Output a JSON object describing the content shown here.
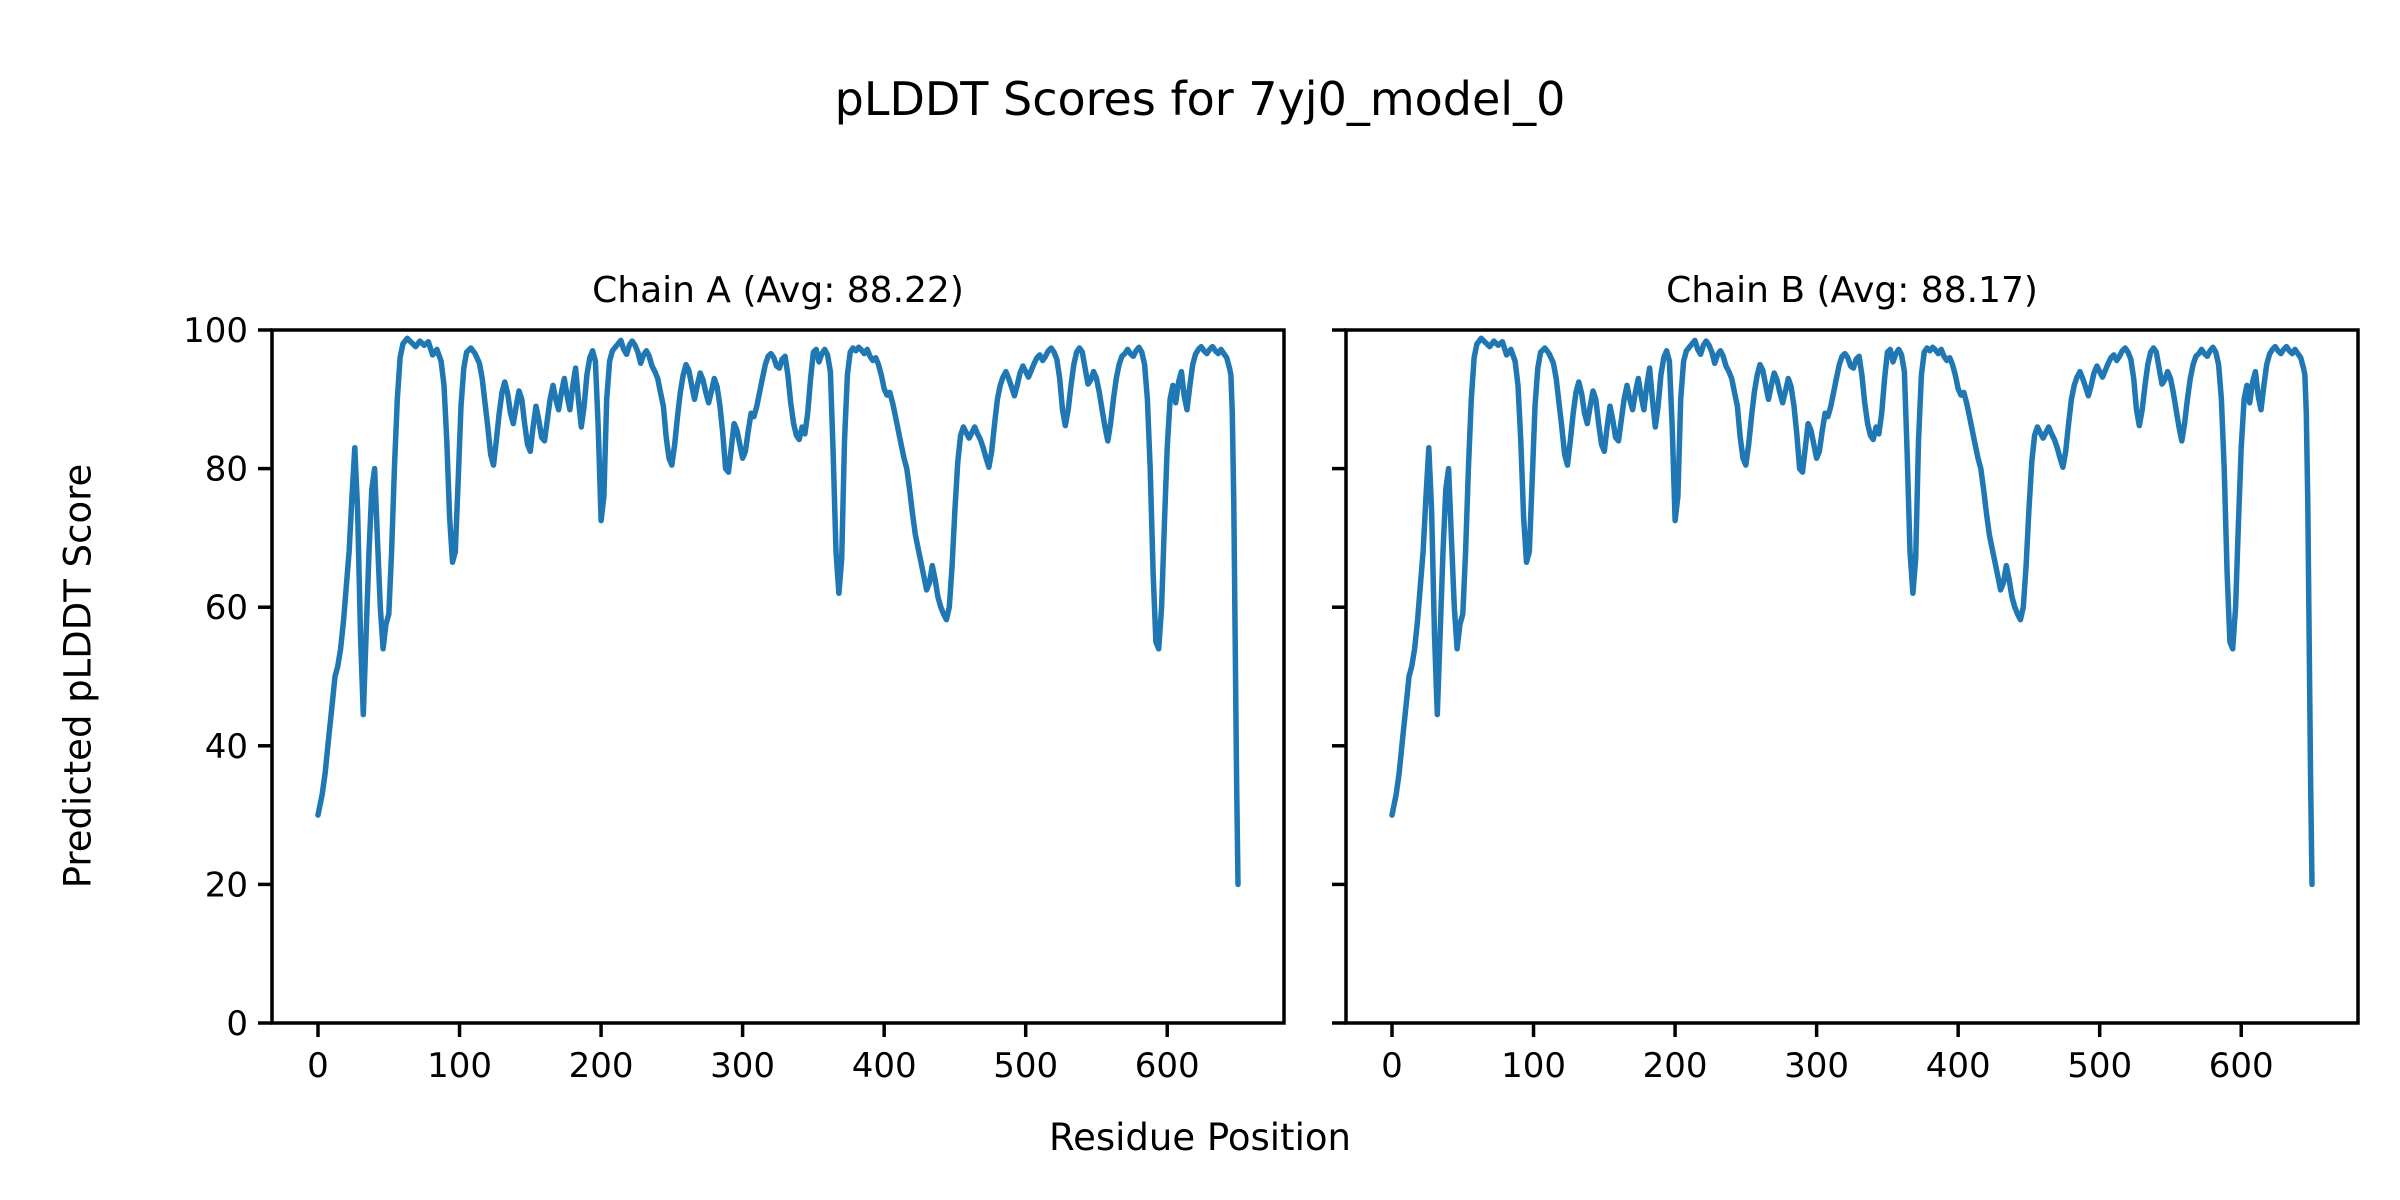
{
  "figure": {
    "suptitle": "pLDDT Scores for 7yj0_model_0",
    "xlabel": "Residue Position",
    "ylabel": "Predicted pLDDT Score",
    "background_color": "#ffffff",
    "text_color": "#000000"
  },
  "chart_data": {
    "type": "line",
    "title": "pLDDT Scores for 7yj0_model_0",
    "xlabel": "Residue Position",
    "ylabel": "Predicted pLDDT Score",
    "line_color": "#1f77b4",
    "grid": false,
    "legend": "none",
    "xlim": [
      -32.5,
      682.5
    ],
    "ylim": [
      0,
      100
    ],
    "xticks": [
      0,
      100,
      200,
      300,
      400,
      500,
      600
    ],
    "yticks": [
      0,
      20,
      40,
      60,
      80,
      100
    ],
    "subplots": [
      {
        "title": "Chain A (Avg: 88.22)",
        "name": "Chain A",
        "avg": 88.22
      },
      {
        "title": "Chain B (Avg: 88.17)",
        "name": "Chain B",
        "avg": 88.17
      }
    ],
    "note": "Both chains show the same pLDDT profile curve",
    "points": [
      [
        0,
        30
      ],
      [
        3,
        33
      ],
      [
        5,
        36
      ],
      [
        8,
        42
      ],
      [
        10,
        46
      ],
      [
        12,
        50
      ],
      [
        14,
        51.5
      ],
      [
        16,
        54
      ],
      [
        18,
        58
      ],
      [
        20,
        63
      ],
      [
        22,
        68
      ],
      [
        24,
        76
      ],
      [
        26,
        83
      ],
      [
        28,
        74
      ],
      [
        30,
        56
      ],
      [
        32,
        44.5
      ],
      [
        34,
        56
      ],
      [
        36,
        68
      ],
      [
        38,
        77
      ],
      [
        40,
        80
      ],
      [
        42,
        70
      ],
      [
        44,
        60
      ],
      [
        46,
        54
      ],
      [
        48,
        57.5
      ],
      [
        50,
        59
      ],
      [
        52,
        68
      ],
      [
        54,
        80
      ],
      [
        56,
        90
      ],
      [
        58,
        96
      ],
      [
        60,
        98
      ],
      [
        63,
        98.8
      ],
      [
        66,
        98.2
      ],
      [
        69,
        97.6
      ],
      [
        72,
        98.4
      ],
      [
        75,
        97.8
      ],
      [
        78,
        98.3
      ],
      [
        81,
        96.4
      ],
      [
        84,
        97.2
      ],
      [
        87,
        95.5
      ],
      [
        89,
        92
      ],
      [
        91,
        84
      ],
      [
        93,
        73
      ],
      [
        95,
        66.5
      ],
      [
        97,
        68
      ],
      [
        99,
        78
      ],
      [
        101,
        89
      ],
      [
        103,
        94.5
      ],
      [
        105,
        96.8
      ],
      [
        108,
        97.4
      ],
      [
        111,
        96.6
      ],
      [
        114,
        95.2
      ],
      [
        116,
        93
      ],
      [
        118,
        89.5
      ],
      [
        120,
        86
      ],
      [
        122,
        82
      ],
      [
        124,
        80.5
      ],
      [
        126,
        84
      ],
      [
        128,
        88
      ],
      [
        130,
        91
      ],
      [
        132,
        92.5
      ],
      [
        134,
        90.8
      ],
      [
        136,
        88
      ],
      [
        138,
        86.5
      ],
      [
        140,
        89
      ],
      [
        142,
        91.2
      ],
      [
        144,
        90
      ],
      [
        146,
        86.5
      ],
      [
        148,
        83.5
      ],
      [
        150,
        82.5
      ],
      [
        152,
        86
      ],
      [
        154,
        89
      ],
      [
        156,
        87
      ],
      [
        158,
        84.5
      ],
      [
        160,
        84
      ],
      [
        162,
        87
      ],
      [
        164,
        90
      ],
      [
        166,
        92
      ],
      [
        168,
        90
      ],
      [
        170,
        88.5
      ],
      [
        172,
        91
      ],
      [
        174,
        93
      ],
      [
        176,
        90.5
      ],
      [
        178,
        88.5
      ],
      [
        180,
        92
      ],
      [
        182,
        94.5
      ],
      [
        184,
        90
      ],
      [
        186,
        86
      ],
      [
        188,
        89
      ],
      [
        190,
        93.5
      ],
      [
        192,
        96
      ],
      [
        194,
        97
      ],
      [
        196,
        95.5
      ],
      [
        198,
        86
      ],
      [
        200,
        72.5
      ],
      [
        202,
        76
      ],
      [
        204,
        90
      ],
      [
        206,
        95.5
      ],
      [
        208,
        97
      ],
      [
        210,
        97.5
      ],
      [
        212,
        98
      ],
      [
        214,
        98.5
      ],
      [
        216,
        97.2
      ],
      [
        218,
        96.5
      ],
      [
        220,
        97.8
      ],
      [
        222,
        98.4
      ],
      [
        224,
        97.8
      ],
      [
        226,
        96.8
      ],
      [
        228,
        95.2
      ],
      [
        230,
        96.4
      ],
      [
        232,
        97
      ],
      [
        234,
        96.2
      ],
      [
        236,
        94.8
      ],
      [
        238,
        94
      ],
      [
        240,
        93
      ],
      [
        242,
        91
      ],
      [
        244,
        89
      ],
      [
        246,
        84.5
      ],
      [
        248,
        81.5
      ],
      [
        250,
        80.5
      ],
      [
        252,
        83.5
      ],
      [
        254,
        87.5
      ],
      [
        256,
        91
      ],
      [
        258,
        93.5
      ],
      [
        260,
        95
      ],
      [
        262,
        94.2
      ],
      [
        264,
        92
      ],
      [
        266,
        90
      ],
      [
        268,
        92
      ],
      [
        270,
        93.8
      ],
      [
        272,
        92.8
      ],
      [
        274,
        91
      ],
      [
        276,
        89.5
      ],
      [
        278,
        91.2
      ],
      [
        280,
        93
      ],
      [
        282,
        91.8
      ],
      [
        284,
        89
      ],
      [
        286,
        85
      ],
      [
        288,
        80
      ],
      [
        290,
        79.5
      ],
      [
        292,
        83
      ],
      [
        294,
        86.5
      ],
      [
        296,
        85.5
      ],
      [
        298,
        83.5
      ],
      [
        300,
        81.5
      ],
      [
        302,
        82.5
      ],
      [
        304,
        85.5
      ],
      [
        306,
        88
      ],
      [
        308,
        87.5
      ],
      [
        310,
        89
      ],
      [
        312,
        91
      ],
      [
        314,
        93
      ],
      [
        316,
        95
      ],
      [
        318,
        96.2
      ],
      [
        320,
        96.6
      ],
      [
        322,
        96
      ],
      [
        324,
        94.8
      ],
      [
        326,
        94.5
      ],
      [
        328,
        95.8
      ],
      [
        330,
        96.2
      ],
      [
        332,
        93.5
      ],
      [
        334,
        89.5
      ],
      [
        336,
        86.5
      ],
      [
        338,
        84.8
      ],
      [
        340,
        84.2
      ],
      [
        342,
        86
      ],
      [
        344,
        85
      ],
      [
        346,
        88
      ],
      [
        348,
        93
      ],
      [
        350,
        96.8
      ],
      [
        352,
        97.2
      ],
      [
        354,
        95.4
      ],
      [
        356,
        96.6
      ],
      [
        358,
        97.2
      ],
      [
        360,
        96.4
      ],
      [
        362,
        94
      ],
      [
        364,
        82
      ],
      [
        366,
        68
      ],
      [
        368,
        62
      ],
      [
        370,
        67
      ],
      [
        372,
        84
      ],
      [
        374,
        93.5
      ],
      [
        376,
        96.8
      ],
      [
        378,
        97.4
      ],
      [
        380,
        97
      ],
      [
        382,
        97.5
      ],
      [
        384,
        97.1
      ],
      [
        386,
        96.6
      ],
      [
        388,
        97.2
      ],
      [
        390,
        96.2
      ],
      [
        392,
        95.6
      ],
      [
        394,
        96
      ],
      [
        396,
        95
      ],
      [
        398,
        93.5
      ],
      [
        400,
        91.5
      ],
      [
        402,
        90.6
      ],
      [
        404,
        91
      ],
      [
        406,
        89.5
      ],
      [
        408,
        87.5
      ],
      [
        410,
        85.5
      ],
      [
        412,
        83.5
      ],
      [
        414,
        81.5
      ],
      [
        416,
        80
      ],
      [
        418,
        77
      ],
      [
        420,
        73.5
      ],
      [
        422,
        70.5
      ],
      [
        424,
        68.5
      ],
      [
        426,
        66.5
      ],
      [
        428,
        64.5
      ],
      [
        430,
        62.5
      ],
      [
        432,
        63.5
      ],
      [
        434,
        66
      ],
      [
        436,
        64
      ],
      [
        438,
        61.5
      ],
      [
        440,
        60
      ],
      [
        442,
        59
      ],
      [
        444,
        58.2
      ],
      [
        446,
        60
      ],
      [
        448,
        66
      ],
      [
        450,
        74
      ],
      [
        452,
        81
      ],
      [
        454,
        84.8
      ],
      [
        456,
        86
      ],
      [
        458,
        85.2
      ],
      [
        460,
        84.4
      ],
      [
        462,
        85.2
      ],
      [
        464,
        86
      ],
      [
        466,
        85
      ],
      [
        468,
        84.2
      ],
      [
        470,
        83
      ],
      [
        472,
        81.5
      ],
      [
        474,
        80.2
      ],
      [
        476,
        82.5
      ],
      [
        478,
        86.5
      ],
      [
        480,
        90
      ],
      [
        482,
        92
      ],
      [
        484,
        93.2
      ],
      [
        486,
        94
      ],
      [
        488,
        93
      ],
      [
        490,
        91.8
      ],
      [
        492,
        90.5
      ],
      [
        494,
        92
      ],
      [
        496,
        93.8
      ],
      [
        498,
        94.8
      ],
      [
        500,
        94
      ],
      [
        502,
        93.2
      ],
      [
        504,
        94.2
      ],
      [
        506,
        95.2
      ],
      [
        508,
        96
      ],
      [
        510,
        96.4
      ],
      [
        512,
        95.6
      ],
      [
        514,
        96.2
      ],
      [
        516,
        97
      ],
      [
        518,
        97.4
      ],
      [
        520,
        96.8
      ],
      [
        522,
        95.8
      ],
      [
        524,
        93
      ],
      [
        526,
        88.5
      ],
      [
        528,
        86.2
      ],
      [
        530,
        88.5
      ],
      [
        532,
        92
      ],
      [
        534,
        95
      ],
      [
        536,
        96.8
      ],
      [
        538,
        97.4
      ],
      [
        540,
        96.8
      ],
      [
        542,
        94.5
      ],
      [
        544,
        92.2
      ],
      [
        546,
        92.8
      ],
      [
        548,
        94
      ],
      [
        550,
        93
      ],
      [
        552,
        91
      ],
      [
        554,
        88.5
      ],
      [
        556,
        86
      ],
      [
        558,
        84
      ],
      [
        560,
        86.5
      ],
      [
        562,
        90
      ],
      [
        564,
        93
      ],
      [
        566,
        95
      ],
      [
        568,
        96.2
      ],
      [
        570,
        96.6
      ],
      [
        572,
        97.2
      ],
      [
        574,
        96.6
      ],
      [
        576,
        96.2
      ],
      [
        578,
        97
      ],
      [
        580,
        97.5
      ],
      [
        582,
        96.8
      ],
      [
        584,
        95
      ],
      [
        586,
        90
      ],
      [
        588,
        80
      ],
      [
        590,
        65
      ],
      [
        592,
        55
      ],
      [
        594,
        54
      ],
      [
        596,
        60
      ],
      [
        598,
        72
      ],
      [
        600,
        83
      ],
      [
        602,
        90
      ],
      [
        604,
        92
      ],
      [
        606,
        89.5
      ],
      [
        608,
        92.5
      ],
      [
        610,
        94
      ],
      [
        612,
        90.5
      ],
      [
        614,
        88.5
      ],
      [
        616,
        92
      ],
      [
        618,
        95
      ],
      [
        620,
        96.5
      ],
      [
        622,
        97.2
      ],
      [
        624,
        97.6
      ],
      [
        626,
        97
      ],
      [
        628,
        96.6
      ],
      [
        630,
        97.2
      ],
      [
        632,
        97.6
      ],
      [
        634,
        97
      ],
      [
        636,
        96.6
      ],
      [
        638,
        97.2
      ],
      [
        640,
        96.6
      ],
      [
        642,
        96
      ],
      [
        644,
        94.5
      ],
      [
        645,
        93.5
      ],
      [
        646,
        88
      ],
      [
        647,
        75
      ],
      [
        648,
        55
      ],
      [
        649,
        35
      ],
      [
        650,
        20
      ]
    ]
  }
}
